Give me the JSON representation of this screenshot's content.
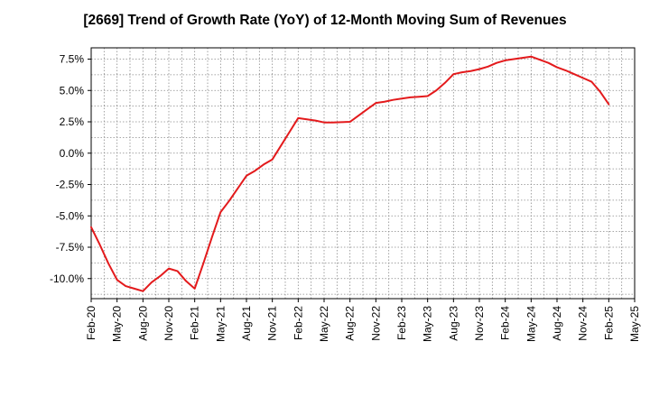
{
  "chart_data": {
    "type": "line",
    "title": "[2669]  Trend of Growth Rate (YoY) of 12-Month Moving Sum of Revenues",
    "xlabel": "",
    "ylabel": "",
    "x_ticks": [
      "Feb-20",
      "May-20",
      "Aug-20",
      "Nov-20",
      "Feb-21",
      "May-21",
      "Aug-21",
      "Nov-21",
      "Feb-22",
      "May-22",
      "Aug-22",
      "Nov-22",
      "Feb-23",
      "May-23",
      "Aug-23",
      "Nov-23",
      "Feb-24",
      "May-24",
      "Aug-24",
      "Nov-24",
      "Feb-25",
      "May-25"
    ],
    "y_ticks": [
      "7.5%",
      "5.0%",
      "2.5%",
      "0.0%",
      "-2.5%",
      "-5.0%",
      "-7.5%",
      "-10.0%"
    ],
    "y_tick_values": [
      7.5,
      5.0,
      2.5,
      0.0,
      -2.5,
      -5.0,
      -7.5,
      -10.0
    ],
    "ylim": [
      -11.6,
      8.4
    ],
    "grid": true,
    "line_color": "#e31a1c",
    "series": [
      {
        "name": "",
        "x": [
          "2020-02",
          "2020-03",
          "2020-04",
          "2020-05",
          "2020-06",
          "2020-07",
          "2020-08",
          "2020-09",
          "2020-10",
          "2020-11",
          "2020-12",
          "2021-01",
          "2021-02",
          "2021-03",
          "2021-04",
          "2021-05",
          "2021-06",
          "2021-07",
          "2021-08",
          "2021-09",
          "2021-10",
          "2021-11",
          "2021-12",
          "2022-01",
          "2022-02",
          "2022-03",
          "2022-04",
          "2022-05",
          "2022-06",
          "2022-07",
          "2022-08",
          "2022-09",
          "2022-10",
          "2022-11",
          "2022-12",
          "2023-01",
          "2023-02",
          "2023-03",
          "2023-04",
          "2023-05",
          "2023-06",
          "2023-07",
          "2023-08",
          "2023-09",
          "2023-10",
          "2023-11",
          "2023-12",
          "2024-01",
          "2024-02",
          "2024-03",
          "2024-04",
          "2024-05",
          "2024-06",
          "2024-07",
          "2024-08",
          "2024-09",
          "2024-10",
          "2024-11",
          "2024-12",
          "2025-01",
          "2025-02"
        ],
        "values": [
          -5.9,
          -7.3,
          -8.8,
          -10.1,
          -10.6,
          -10.8,
          -11.0,
          -10.3,
          -9.8,
          -9.2,
          -9.4,
          -10.2,
          -10.8,
          -8.8,
          -6.7,
          -4.7,
          -3.8,
          -2.8,
          -1.8,
          -1.4,
          -0.9,
          -0.5,
          0.6,
          1.7,
          2.8,
          2.7,
          2.6,
          2.45,
          2.45,
          2.47,
          2.5,
          3.0,
          3.5,
          4.0,
          4.1,
          4.25,
          4.35,
          4.45,
          4.5,
          4.55,
          5.0,
          5.6,
          6.3,
          6.45,
          6.55,
          6.7,
          6.9,
          7.2,
          7.4,
          7.5,
          7.6,
          7.7,
          7.45,
          7.2,
          6.85,
          6.6,
          6.3,
          6.0,
          5.7,
          4.9,
          3.9
        ]
      }
    ]
  }
}
